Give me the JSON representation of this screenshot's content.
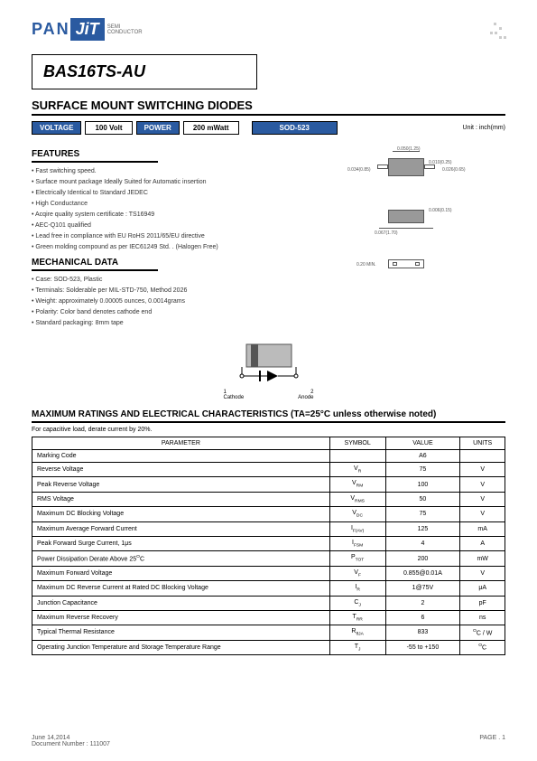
{
  "logo": {
    "prefix": "PAN",
    "suffix": "JiT",
    "sub1": "SEMI",
    "sub2": "CONDUCTOR"
  },
  "part_number": "BAS16TS-AU",
  "title": "SURFACE MOUNT SWITCHING DIODES",
  "specs": {
    "voltage_label": "VOLTAGE",
    "voltage_value": "100 Volt",
    "power_label": "POWER",
    "power_value": "200 mWatt",
    "package": "SOD-523",
    "unit": "Unit : inch(mm)"
  },
  "features_header": "FEATURES",
  "features": [
    "Fast switching speed.",
    "Surface mount package Ideally Suited for Automatic insertion",
    "Electrically Identical to Standard JEDEC",
    "High Conductance",
    "Acqire quality system certificate : TS16949",
    "AEC-Q101 qualified",
    "Lead free in compliance with EU RoHS 2011/65/EU directive",
    "Green molding compound as per IEC61249 Std. . (Halogen Free)"
  ],
  "mech_header": "MECHANICAL DATA",
  "mech_data": [
    "Case: SOD-523, Plastic",
    "Terminals: Solderable per MIL-STD-750, Method 2026",
    "Weight: approximately  0.00005 ounces, 0.0014grams",
    "Polarity: Color band denotes cathode end",
    "Standard packaging: 8mm tape"
  ],
  "diode": {
    "cathode": "Cathode",
    "anode": "Anode",
    "pin1": "1",
    "pin2": "2"
  },
  "pkg_dims": {
    "d1": "0.050(1.25)",
    "d2": "0.010(0.25)",
    "d3": "0.034(0.85)",
    "d4": "0.026(0.65)",
    "d5": "0.006(0.15)",
    "d6": "0.067(1.70)",
    "d7": "0.20 MIN."
  },
  "ratings_title": "MAXIMUM RATINGS AND ELECTRICAL CHARACTERISTICS (TA=25°C unless otherwise noted)",
  "ratings_note": "For capacitive load, derate current by 20%.",
  "table": {
    "headers": [
      "PARAMETER",
      "SYMBOL",
      "VALUE",
      "UNITS"
    ],
    "rows": [
      {
        "param": "Marking Code",
        "symbol": "",
        "value": "A6",
        "unit": ""
      },
      {
        "param": "Reverse Voltage",
        "symbol": "V<sub>R</sub>",
        "value": "75",
        "unit": "V"
      },
      {
        "param": "Peak Reverse Voltage",
        "symbol": "V<sub>RM</sub>",
        "value": "100",
        "unit": "V"
      },
      {
        "param": "RMS Voltage",
        "symbol": "V<sub>RMS</sub>",
        "value": "50",
        "unit": "V"
      },
      {
        "param": "Maximum DC Blocking Voltage",
        "symbol": "V<sub>DC</sub>",
        "value": "75",
        "unit": "V"
      },
      {
        "param": "Maximum Average Forward  Current",
        "symbol": "I<sub>F(AV)</sub>",
        "value": "125",
        "unit": "mA"
      },
      {
        "param": "Peak Forward Surge Current, 1μs",
        "symbol": "I<sub>FSM</sub>",
        "value": "4",
        "unit": "A"
      },
      {
        "param": "Power Dissipation Derate Above 25<sup>O</sup>C",
        "symbol": "P<sub>TOT</sub>",
        "value": "200",
        "unit": "mW"
      },
      {
        "param": "Maximum Forward Voltage",
        "symbol": "V<sub>F</sub>",
        "value": "0.855@0.01A",
        "unit": "V"
      },
      {
        "param": "Maximum DC Reverse Current at Rated DC Blocking Voltage",
        "symbol": "I<sub>R</sub>",
        "value": "1@75V",
        "unit": "μA"
      },
      {
        "param": "Junction Capacitance",
        "symbol": "C<sub>J</sub>",
        "value": "2",
        "unit": "pF"
      },
      {
        "param": "Maximum Reverse Recovery",
        "symbol": "T<sub>RR</sub>",
        "value": "6",
        "unit": "ns"
      },
      {
        "param": "Typical Thermal Resistance",
        "symbol": "R<sub>θJA</sub>",
        "value": "833",
        "unit": "<sup>O</sup>C / W"
      },
      {
        "param": "Operating Junction Temperature and Storage Temperature Range",
        "symbol": "T<sub>J</sub>",
        "value": "-55 to +150",
        "unit": "<sup>O</sup>C"
      }
    ]
  },
  "footer": {
    "date": "June 14,2014",
    "doc": "Document Number : 111007",
    "page": "PAGE .  1"
  },
  "colors": {
    "brand": "#2a5aa0",
    "text": "#000",
    "grey": "#999"
  }
}
